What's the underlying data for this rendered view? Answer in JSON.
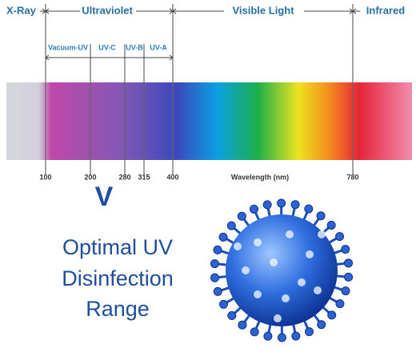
{
  "header": {
    "regions": [
      "X-Ray",
      "Ultraviolet",
      "Visible Light",
      "Infrared"
    ],
    "uv_bands": [
      "Vacuum-UV",
      "UV-C",
      "UV-B",
      "UV-A"
    ]
  },
  "axis": {
    "ticks": [
      100,
      200,
      280,
      315,
      400,
      780
    ],
    "label": "Wavelength (nm)"
  },
  "marker": "V",
  "caption": [
    "Optimal UV",
    "Disinfection",
    "Range"
  ]
}
